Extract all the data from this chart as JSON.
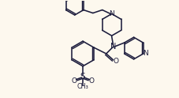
{
  "bg_color": "#fdf8ee",
  "line_color": "#1c1c3c",
  "line_width": 1.15,
  "figsize": [
    2.27,
    1.24
  ],
  "dpi": 100,
  "xlim": [
    0,
    227
  ],
  "ylim": [
    124,
    0
  ]
}
